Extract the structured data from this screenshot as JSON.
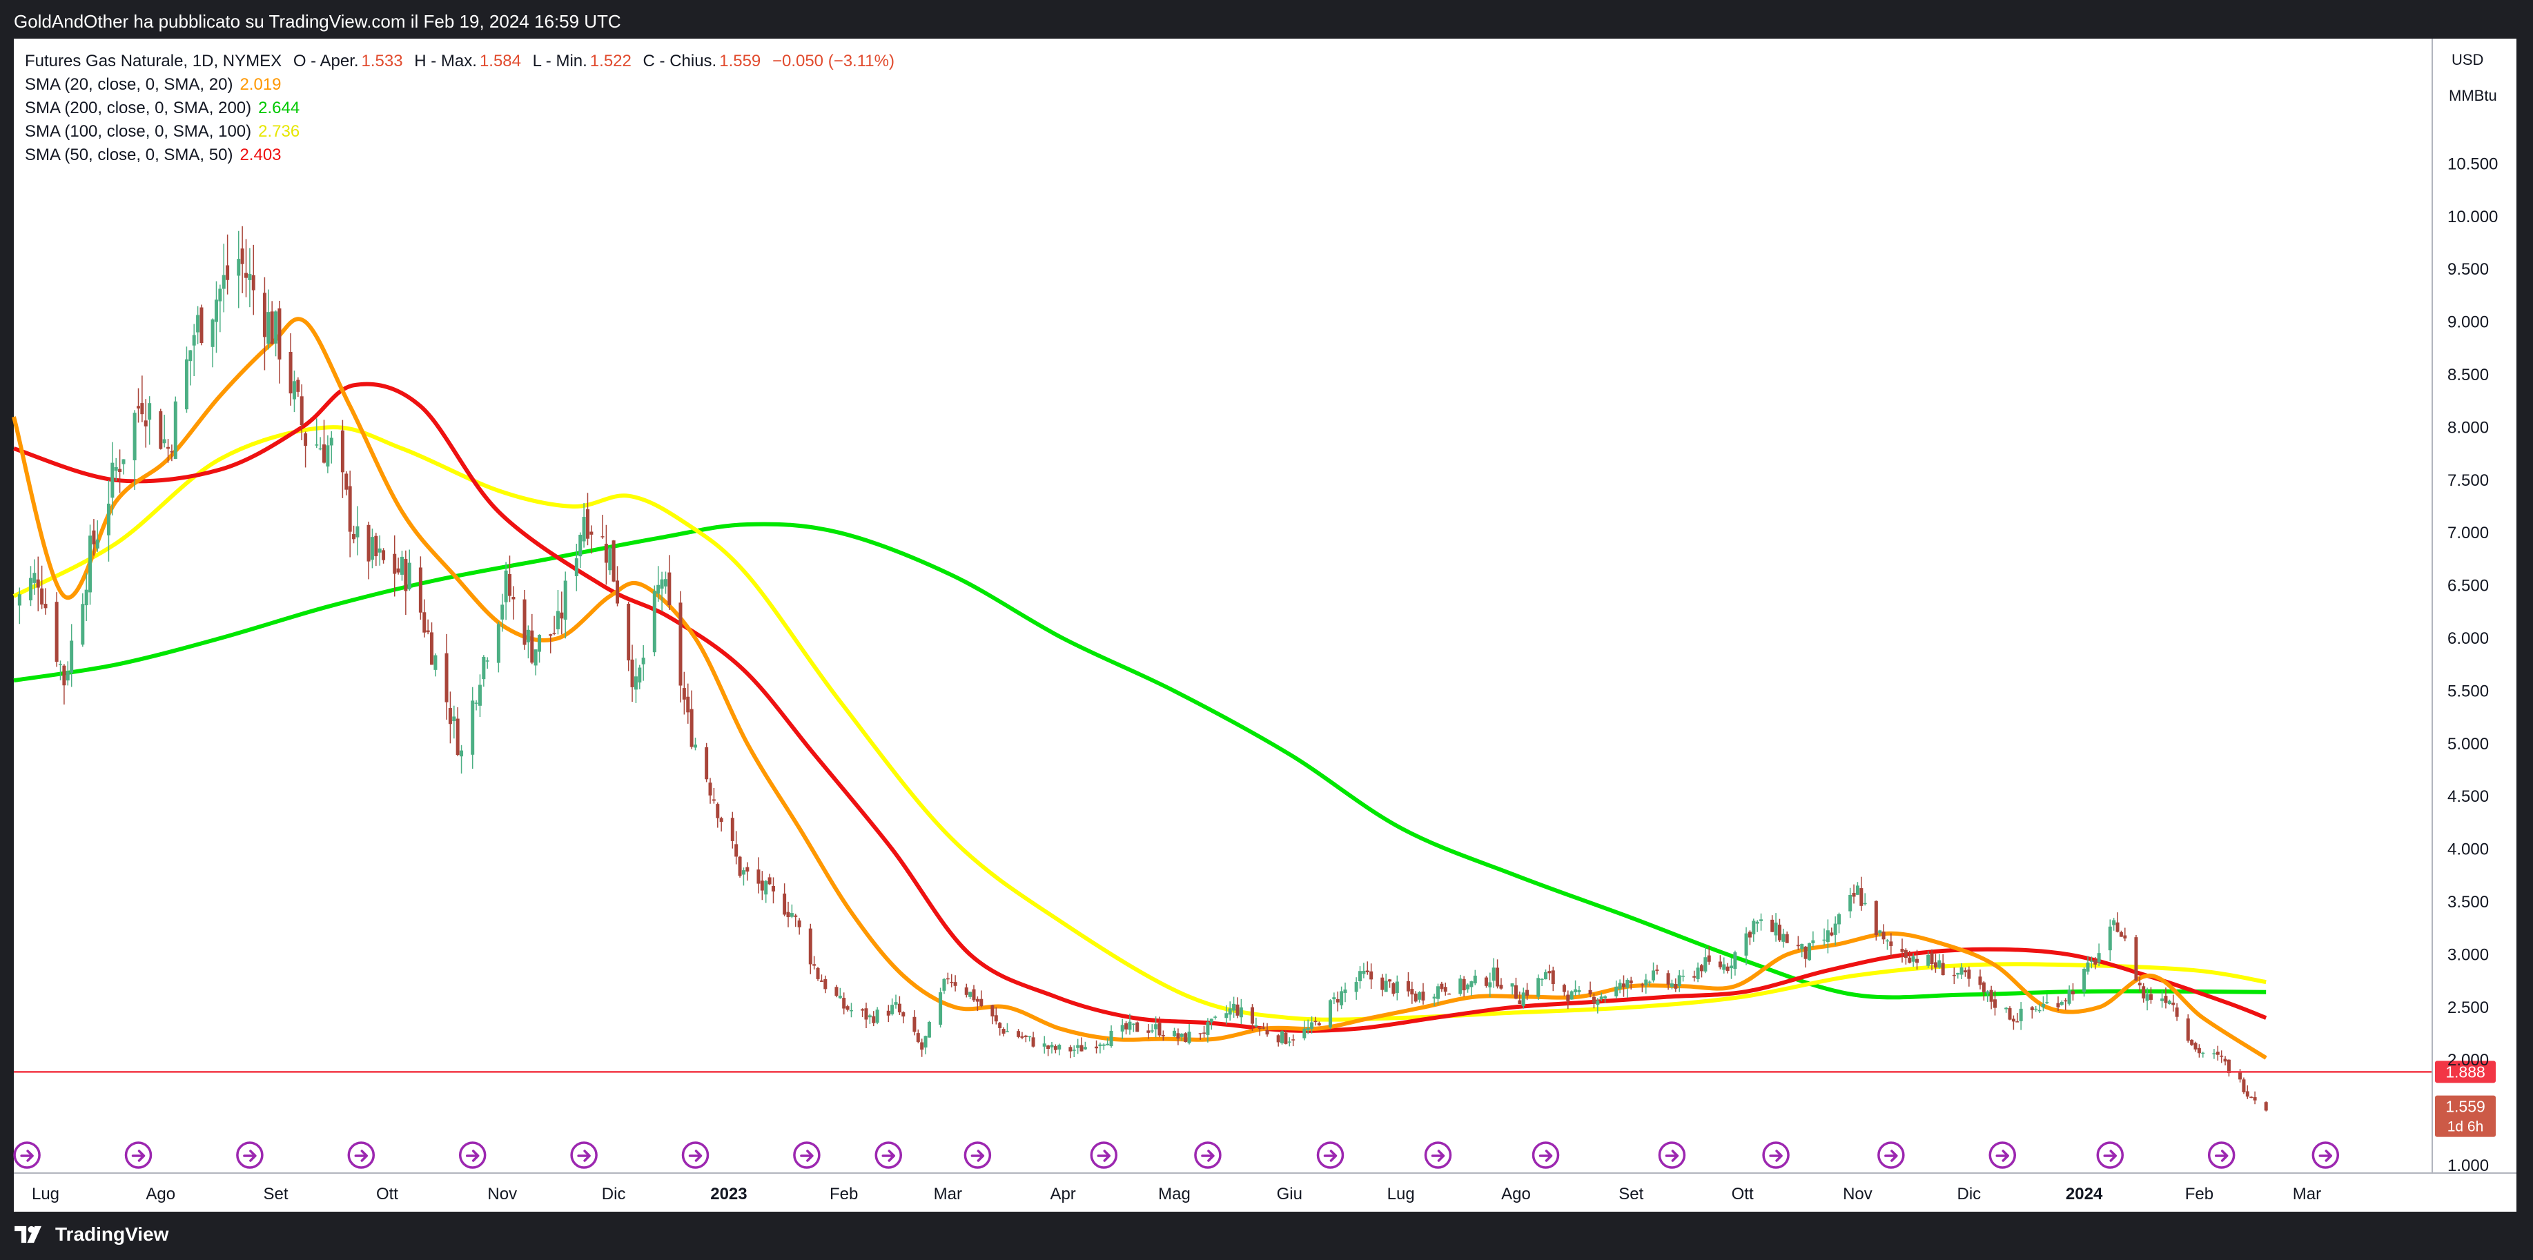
{
  "header": {
    "text": "GoldAndOther ha pubblicato su TradingView.com il Feb 19, 2024 16:59 UTC"
  },
  "footer": {
    "brand": "TradingView"
  },
  "legend": {
    "symbol": "Futures Gas Naturale, 1D, NYMEX",
    "o_label": "O - Aper.",
    "o_value": "1.533",
    "h_label": "H - Max.",
    "h_value": "1.584",
    "l_label": "L - Min.",
    "l_value": "1.522",
    "c_label": "C - Chius.",
    "c_value": "1.559",
    "change": "−0.050 (−3.11%)",
    "indicators": [
      {
        "label": "SMA (20, close, 0, SMA, 20)",
        "value": "2.019",
        "color": "#ff9800"
      },
      {
        "label": "SMA (200, close, 0, SMA, 200)",
        "value": "2.644",
        "color": "#00e600"
      },
      {
        "label": "SMA (100, close, 0, SMA, 100)",
        "value": "2.736",
        "color": "#ffff00"
      },
      {
        "label": "SMA (50, close, 0, SMA, 50)",
        "value": "2.403",
        "color": "#ee1111"
      }
    ]
  },
  "colors": {
    "up_candle": "#4caf84",
    "down_candle": "#a9453a",
    "sma20": "#ff9800",
    "sma50": "#ee1111",
    "sma100": "#ffff00",
    "sma200": "#00e600",
    "hline": "#f23645",
    "last_price_bg": "#cc5a47",
    "event_icon": "#9c27b0"
  },
  "chart_data": {
    "type": "line",
    "title": "Futures Gas Naturale, 1D, NYMEX",
    "ylim": [
      1.0,
      11.0
    ],
    "y_scale": "linear",
    "currency": "USD",
    "unit": "MMBtu",
    "grid": false,
    "y_ticks": [
      "10.500",
      "10.000",
      "9.500",
      "9.000",
      "8.500",
      "8.000",
      "7.500",
      "7.000",
      "6.500",
      "6.000",
      "5.500",
      "5.000",
      "4.500",
      "4.000",
      "3.500",
      "3.000",
      "2.500",
      "2.000",
      "1.000"
    ],
    "x_ticks": [
      "Lug",
      "Ago",
      "Set",
      "Ott",
      "Nov",
      "Dic",
      "2023",
      "Feb",
      "Mar",
      "Apr",
      "Mag",
      "Giu",
      "Lug",
      "Ago",
      "Set",
      "Ott",
      "Nov",
      "Dic",
      "2024",
      "Feb",
      "Mar"
    ],
    "x_tick_dates": [
      "2022-07-01",
      "2022-08-01",
      "2022-09-01",
      "2022-10-01",
      "2022-11-01",
      "2022-12-01",
      "2023-01-01",
      "2023-02-01",
      "2023-03-01",
      "2023-04-01",
      "2023-05-01",
      "2023-06-01",
      "2023-07-01",
      "2023-08-01",
      "2023-09-01",
      "2023-10-01",
      "2023-11-01",
      "2023-12-01",
      "2024-01-01",
      "2024-02-01",
      "2024-03-01"
    ],
    "x_range": [
      "2022-06-22",
      "2024-03-06"
    ],
    "horizontal_line": {
      "value": 1.888,
      "label": "1.888"
    },
    "last_price": {
      "value": 1.559,
      "label": "1.559",
      "countdown": "1d 6h"
    },
    "price": {
      "name": "Futures Gas Naturale",
      "x": [
        "2022-06-22",
        "2022-06-29",
        "2022-07-06",
        "2022-07-13",
        "2022-07-20",
        "2022-07-27",
        "2022-08-03",
        "2022-08-10",
        "2022-08-17",
        "2022-08-22",
        "2022-08-26",
        "2022-09-02",
        "2022-09-09",
        "2022-09-16",
        "2022-09-23",
        "2022-09-30",
        "2022-10-07",
        "2022-10-14",
        "2022-10-21",
        "2022-10-26",
        "2022-11-02",
        "2022-11-09",
        "2022-11-16",
        "2022-11-23",
        "2022-11-30",
        "2022-12-07",
        "2022-12-14",
        "2022-12-21",
        "2022-12-28",
        "2023-01-04",
        "2023-01-11",
        "2023-01-18",
        "2023-01-25",
        "2023-02-01",
        "2023-02-08",
        "2023-02-15",
        "2023-02-22",
        "2023-03-01",
        "2023-03-08",
        "2023-03-15",
        "2023-03-22",
        "2023-03-29",
        "2023-04-05",
        "2023-04-12",
        "2023-04-19",
        "2023-04-26",
        "2023-05-03",
        "2023-05-10",
        "2023-05-17",
        "2023-05-24",
        "2023-05-31",
        "2023-06-07",
        "2023-06-14",
        "2023-06-21",
        "2023-06-28",
        "2023-07-05",
        "2023-07-12",
        "2023-07-19",
        "2023-07-26",
        "2023-08-02",
        "2023-08-09",
        "2023-08-16",
        "2023-08-23",
        "2023-08-30",
        "2023-09-06",
        "2023-09-13",
        "2023-09-20",
        "2023-09-27",
        "2023-10-04",
        "2023-10-11",
        "2023-10-18",
        "2023-10-25",
        "2023-11-01",
        "2023-11-08",
        "2023-11-15",
        "2023-11-22",
        "2023-11-29",
        "2023-12-06",
        "2023-12-13",
        "2023-12-20",
        "2023-12-27",
        "2024-01-03",
        "2024-01-10",
        "2024-01-17",
        "2024-01-24",
        "2024-01-31",
        "2024-02-07",
        "2024-02-14",
        "2024-02-19"
      ],
      "close": [
        6.3,
        6.6,
        5.6,
        6.8,
        7.6,
        8.3,
        7.8,
        8.9,
        9.3,
        9.6,
        9.3,
        8.8,
        7.9,
        7.8,
        6.9,
        6.7,
        6.6,
        5.8,
        4.9,
        5.7,
        6.5,
        5.9,
        6.1,
        7.2,
        6.8,
        5.5,
        6.6,
        5.2,
        4.5,
        3.8,
        3.6,
        3.4,
        2.8,
        2.5,
        2.4,
        2.5,
        2.1,
        2.8,
        2.6,
        2.3,
        2.2,
        2.1,
        2.1,
        2.2,
        2.3,
        2.3,
        2.2,
        2.3,
        2.5,
        2.3,
        2.2,
        2.3,
        2.6,
        2.8,
        2.7,
        2.6,
        2.7,
        2.7,
        2.8,
        2.6,
        2.8,
        2.6,
        2.6,
        2.7,
        2.8,
        2.7,
        2.9,
        2.9,
        3.3,
        3.2,
        3.0,
        3.2,
        3.6,
        3.1,
        3.0,
        2.9,
        2.8,
        2.6,
        2.4,
        2.5,
        2.6,
        2.9,
        3.3,
        2.6,
        2.6,
        2.1,
        2.0,
        1.7,
        1.56
      ]
    },
    "series": [
      {
        "name": "SMA (20, close, 0, SMA, 20)",
        "color": "#ff9800",
        "x": [
          "2022-06-22",
          "2022-07-06",
          "2022-07-20",
          "2022-08-03",
          "2022-08-17",
          "2022-08-31",
          "2022-09-09",
          "2022-09-21",
          "2022-10-05",
          "2022-10-19",
          "2022-11-02",
          "2022-11-16",
          "2022-11-30",
          "2022-12-09",
          "2022-12-23",
          "2023-01-06",
          "2023-01-20",
          "2023-02-03",
          "2023-02-17",
          "2023-03-03",
          "2023-03-17",
          "2023-03-31",
          "2023-04-14",
          "2023-04-28",
          "2023-05-12",
          "2023-05-26",
          "2023-06-09",
          "2023-06-23",
          "2023-07-07",
          "2023-07-21",
          "2023-08-04",
          "2023-08-18",
          "2023-09-01",
          "2023-09-15",
          "2023-09-29",
          "2023-10-13",
          "2023-10-27",
          "2023-11-10",
          "2023-11-24",
          "2023-12-08",
          "2023-12-22",
          "2024-01-05",
          "2024-01-19",
          "2024-02-02",
          "2024-02-19"
        ],
        "values": [
          8.1,
          6.4,
          7.3,
          7.7,
          8.3,
          8.8,
          9.0,
          8.2,
          7.2,
          6.6,
          6.1,
          6.0,
          6.4,
          6.5,
          6.0,
          5.0,
          4.2,
          3.4,
          2.8,
          2.5,
          2.5,
          2.3,
          2.2,
          2.2,
          2.2,
          2.3,
          2.3,
          2.4,
          2.5,
          2.6,
          2.6,
          2.6,
          2.7,
          2.7,
          2.7,
          3.0,
          3.1,
          3.2,
          3.1,
          2.9,
          2.5,
          2.5,
          2.8,
          2.4,
          2.02
        ]
      },
      {
        "name": "SMA (50, close, 0, SMA, 50)",
        "color": "#ee1111",
        "x": [
          "2022-06-22",
          "2022-07-20",
          "2022-08-17",
          "2022-09-08",
          "2022-09-22",
          "2022-10-10",
          "2022-10-31",
          "2022-11-28",
          "2022-12-16",
          "2023-01-05",
          "2023-01-24",
          "2023-02-14",
          "2023-03-07",
          "2023-03-30",
          "2023-04-20",
          "2023-05-11",
          "2023-06-01",
          "2023-06-20",
          "2023-07-10",
          "2023-07-31",
          "2023-08-21",
          "2023-09-11",
          "2023-10-02",
          "2023-10-24",
          "2023-11-14",
          "2023-12-06",
          "2023-12-28",
          "2024-01-18",
          "2024-02-08",
          "2024-02-19"
        ],
        "values": [
          7.8,
          7.5,
          7.6,
          8.0,
          8.4,
          8.2,
          7.2,
          6.5,
          6.2,
          5.7,
          4.9,
          4.0,
          3.0,
          2.6,
          2.4,
          2.35,
          2.28,
          2.3,
          2.4,
          2.5,
          2.55,
          2.6,
          2.65,
          2.85,
          3.0,
          3.05,
          3.0,
          2.8,
          2.55,
          2.4
        ]
      },
      {
        "name": "SMA (100, close, 0, SMA, 100)",
        "color": "#ffff00",
        "x": [
          "2022-06-22",
          "2022-07-20",
          "2022-08-17",
          "2022-09-15",
          "2022-10-05",
          "2022-10-31",
          "2022-11-20",
          "2022-12-05",
          "2022-12-20",
          "2023-01-06",
          "2023-01-31",
          "2023-03-02",
          "2023-04-01",
          "2023-05-05",
          "2023-06-01",
          "2023-07-01",
          "2023-08-01",
          "2023-09-01",
          "2023-10-01",
          "2023-10-31",
          "2023-11-30",
          "2023-12-31",
          "2024-01-31",
          "2024-02-19"
        ],
        "values": [
          6.4,
          6.9,
          7.7,
          8.0,
          7.8,
          7.4,
          7.25,
          7.35,
          7.1,
          6.6,
          5.4,
          4.1,
          3.3,
          2.6,
          2.4,
          2.4,
          2.45,
          2.5,
          2.6,
          2.8,
          2.9,
          2.9,
          2.85,
          2.74
        ]
      },
      {
        "name": "SMA (200, close, 0, SMA, 200)",
        "color": "#00e600",
        "x": [
          "2022-06-22",
          "2022-07-20",
          "2022-08-17",
          "2022-09-15",
          "2022-10-14",
          "2022-11-13",
          "2022-12-13",
          "2023-01-06",
          "2023-01-31",
          "2023-03-02",
          "2023-04-01",
          "2023-05-01",
          "2023-06-01",
          "2023-07-01",
          "2023-08-01",
          "2023-09-01",
          "2023-10-01",
          "2023-10-31",
          "2023-11-30",
          "2023-12-31",
          "2024-01-31",
          "2024-02-19"
        ],
        "values": [
          5.6,
          5.75,
          6.0,
          6.3,
          6.55,
          6.75,
          6.95,
          7.08,
          7.0,
          6.6,
          6.0,
          5.5,
          4.9,
          4.2,
          3.75,
          3.35,
          2.95,
          2.62,
          2.62,
          2.65,
          2.65,
          2.644
        ]
      }
    ],
    "event_markers": [
      "2022-06-26",
      "2022-07-26",
      "2022-08-25",
      "2022-09-24",
      "2022-10-24",
      "2022-11-23",
      "2022-12-23",
      "2023-01-22",
      "2023-02-13",
      "2023-03-09",
      "2023-04-12",
      "2023-05-10",
      "2023-06-12",
      "2023-07-11",
      "2023-08-09",
      "2023-09-12",
      "2023-10-10",
      "2023-11-10",
      "2023-12-10",
      "2024-01-08",
      "2024-02-07",
      "2024-03-06"
    ]
  }
}
